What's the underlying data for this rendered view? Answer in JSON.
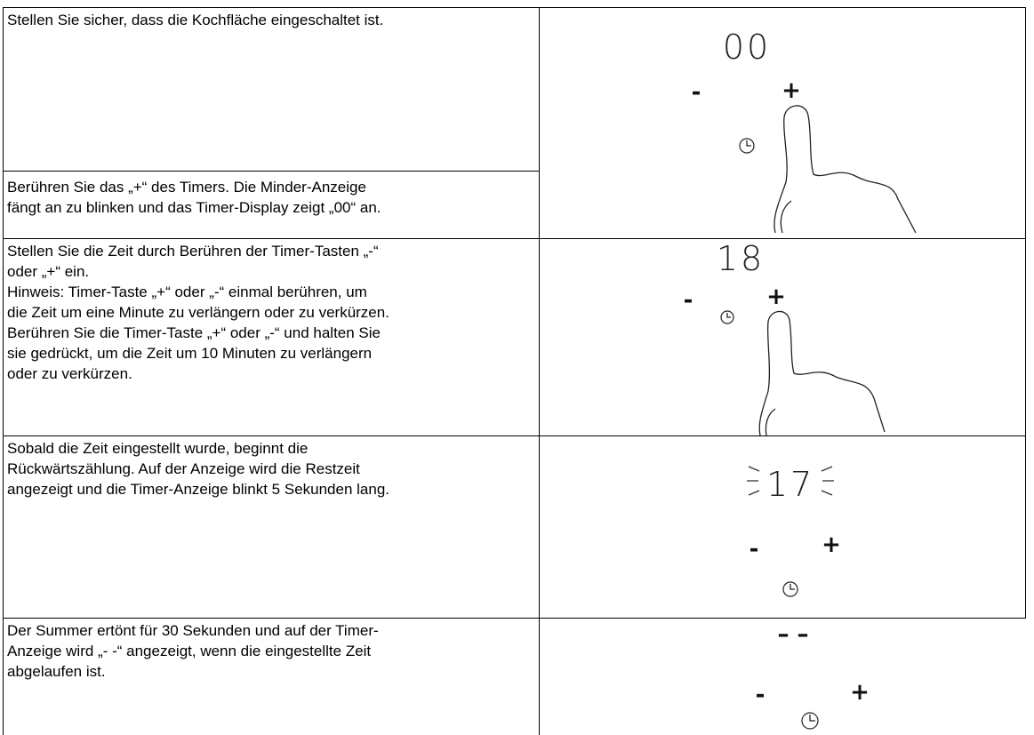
{
  "table": {
    "rows": [
      {
        "paragraphs": [
          [
            "Stellen Sie sicher, dass die Kochfläche eingeschaltet ist."
          ],
          [
            "Berühren Sie das „+“ des Timers. Die Minder-Anzeige",
            "fängt an zu blinken und das Timer-Display zeigt „00“ an."
          ]
        ],
        "display": "00",
        "minus": "-",
        "plus": "+"
      },
      {
        "paragraphs": [
          [
            "Stellen Sie die Zeit durch Berühren der Timer-Tasten „-“",
            "oder „+“ ein.",
            "Hinweis: Timer-Taste „+“ oder „-“ einmal berühren, um",
            "die Zeit um eine Minute zu verlängern oder zu verkürzen.",
            "Berühren Sie die Timer-Taste „+“ oder „-“ und halten Sie",
            "sie gedrückt, um die Zeit um 10 Minuten zu verlängern",
            "oder zu verkürzen."
          ]
        ],
        "display": "18",
        "minus": "-",
        "plus": "+"
      },
      {
        "paragraphs": [
          [
            "Sobald die Zeit eingestellt wurde, beginnt die",
            "Rückwärtszählung. Auf der Anzeige wird die Restzeit",
            "angezeigt und die Timer-Anzeige blinkt 5 Sekunden lang."
          ]
        ],
        "display": "17",
        "minus": "-",
        "plus": "+"
      },
      {
        "paragraphs": [
          [
            "Der Summer ertönt für 30 Sekunden und auf der Timer-",
            "Anzeige wird „- -“ angezeigt, wenn die eingestellte Zeit",
            "abgelaufen ist."
          ]
        ],
        "display": "– –",
        "minus": "-",
        "plus": "+"
      }
    ]
  }
}
